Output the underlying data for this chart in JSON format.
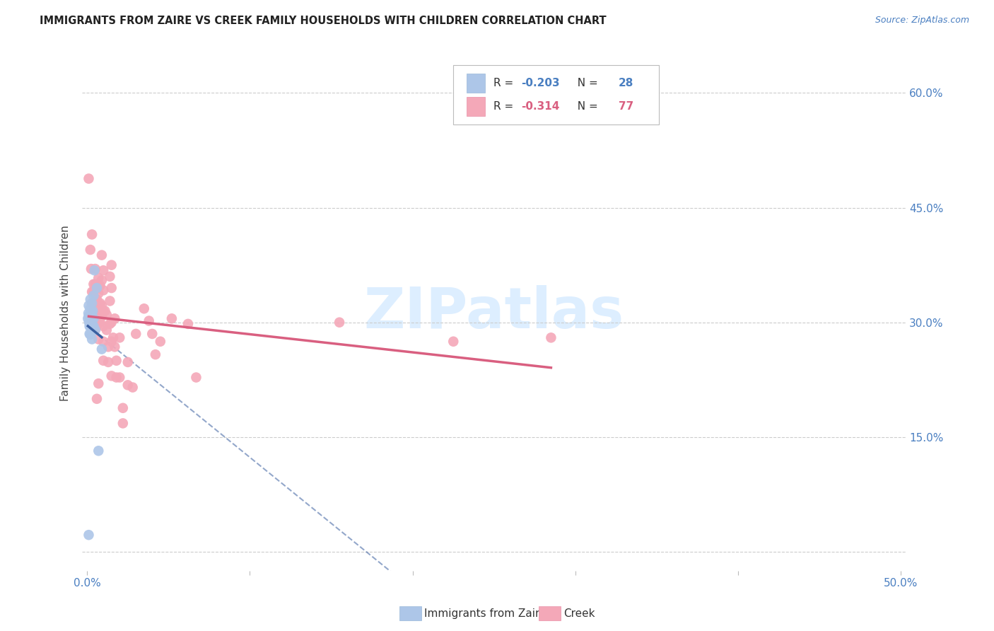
{
  "title": "IMMIGRANTS FROM ZAIRE VS CREEK FAMILY HOUSEHOLDS WITH CHILDREN CORRELATION CHART",
  "source": "Source: ZipAtlas.com",
  "ylabel": "Family Households with Children",
  "legend_label1": "Immigrants from Zaire",
  "legend_label2": "Creek",
  "blue_color": "#adc6e8",
  "blue_line_color": "#3a5fa0",
  "pink_color": "#f4a8b8",
  "pink_line_color": "#d95f80",
  "background_color": "#ffffff",
  "watermark_color": "#ddeeff",
  "xlim": [
    -0.003,
    0.503
  ],
  "ylim": [
    -0.025,
    0.65
  ],
  "x_ticks": [
    0.0,
    0.1,
    0.2,
    0.3,
    0.4,
    0.5
  ],
  "x_tick_labels": [
    "0.0%",
    "",
    "",
    "",
    "",
    "50.0%"
  ],
  "y_ticks": [
    0.0,
    0.15,
    0.3,
    0.45,
    0.6
  ],
  "y_tick_labels_right": [
    "",
    "15.0%",
    "30.0%",
    "45.0%",
    "60.0%"
  ],
  "r1": "-0.203",
  "n1": "28",
  "r2": "-0.314",
  "n2": "77",
  "zaire_points": [
    [
      0.0005,
      0.305
    ],
    [
      0.0008,
      0.312
    ],
    [
      0.001,
      0.322
    ],
    [
      0.001,
      0.308
    ],
    [
      0.0012,
      0.3
    ],
    [
      0.0015,
      0.295
    ],
    [
      0.0015,
      0.285
    ],
    [
      0.002,
      0.33
    ],
    [
      0.002,
      0.318
    ],
    [
      0.002,
      0.305
    ],
    [
      0.002,
      0.295
    ],
    [
      0.002,
      0.284
    ],
    [
      0.0025,
      0.315
    ],
    [
      0.003,
      0.325
    ],
    [
      0.003,
      0.31
    ],
    [
      0.003,
      0.298
    ],
    [
      0.003,
      0.29
    ],
    [
      0.003,
      0.278
    ],
    [
      0.0035,
      0.315
    ],
    [
      0.004,
      0.335
    ],
    [
      0.004,
      0.305
    ],
    [
      0.004,
      0.295
    ],
    [
      0.0045,
      0.368
    ],
    [
      0.005,
      0.29
    ],
    [
      0.006,
      0.345
    ],
    [
      0.007,
      0.132
    ],
    [
      0.009,
      0.265
    ],
    [
      0.001,
      0.022
    ]
  ],
  "creek_points": [
    [
      0.001,
      0.488
    ],
    [
      0.002,
      0.395
    ],
    [
      0.0025,
      0.37
    ],
    [
      0.003,
      0.415
    ],
    [
      0.003,
      0.34
    ],
    [
      0.003,
      0.325
    ],
    [
      0.003,
      0.31
    ],
    [
      0.004,
      0.35
    ],
    [
      0.004,
      0.34
    ],
    [
      0.004,
      0.315
    ],
    [
      0.004,
      0.298
    ],
    [
      0.005,
      0.37
    ],
    [
      0.005,
      0.35
    ],
    [
      0.005,
      0.328
    ],
    [
      0.005,
      0.305
    ],
    [
      0.005,
      0.29
    ],
    [
      0.006,
      0.345
    ],
    [
      0.006,
      0.33
    ],
    [
      0.006,
      0.315
    ],
    [
      0.006,
      0.295
    ],
    [
      0.006,
      0.2
    ],
    [
      0.007,
      0.358
    ],
    [
      0.007,
      0.338
    ],
    [
      0.007,
      0.318
    ],
    [
      0.007,
      0.305
    ],
    [
      0.007,
      0.278
    ],
    [
      0.007,
      0.22
    ],
    [
      0.008,
      0.348
    ],
    [
      0.008,
      0.325
    ],
    [
      0.008,
      0.3
    ],
    [
      0.009,
      0.388
    ],
    [
      0.009,
      0.355
    ],
    [
      0.009,
      0.322
    ],
    [
      0.009,
      0.308
    ],
    [
      0.01,
      0.368
    ],
    [
      0.01,
      0.342
    ],
    [
      0.01,
      0.315
    ],
    [
      0.01,
      0.295
    ],
    [
      0.01,
      0.275
    ],
    [
      0.01,
      0.25
    ],
    [
      0.011,
      0.315
    ],
    [
      0.012,
      0.31
    ],
    [
      0.012,
      0.29
    ],
    [
      0.013,
      0.268
    ],
    [
      0.013,
      0.248
    ],
    [
      0.014,
      0.36
    ],
    [
      0.014,
      0.328
    ],
    [
      0.014,
      0.298
    ],
    [
      0.015,
      0.375
    ],
    [
      0.015,
      0.345
    ],
    [
      0.015,
      0.3
    ],
    [
      0.015,
      0.275
    ],
    [
      0.015,
      0.23
    ],
    [
      0.016,
      0.28
    ],
    [
      0.017,
      0.305
    ],
    [
      0.017,
      0.268
    ],
    [
      0.018,
      0.25
    ],
    [
      0.018,
      0.228
    ],
    [
      0.02,
      0.28
    ],
    [
      0.02,
      0.228
    ],
    [
      0.022,
      0.188
    ],
    [
      0.022,
      0.168
    ],
    [
      0.025,
      0.248
    ],
    [
      0.025,
      0.218
    ],
    [
      0.028,
      0.215
    ],
    [
      0.03,
      0.285
    ],
    [
      0.035,
      0.318
    ],
    [
      0.038,
      0.302
    ],
    [
      0.04,
      0.285
    ],
    [
      0.042,
      0.258
    ],
    [
      0.045,
      0.275
    ],
    [
      0.052,
      0.305
    ],
    [
      0.062,
      0.298
    ],
    [
      0.067,
      0.228
    ],
    [
      0.155,
      0.3
    ],
    [
      0.225,
      0.275
    ],
    [
      0.285,
      0.28
    ]
  ]
}
